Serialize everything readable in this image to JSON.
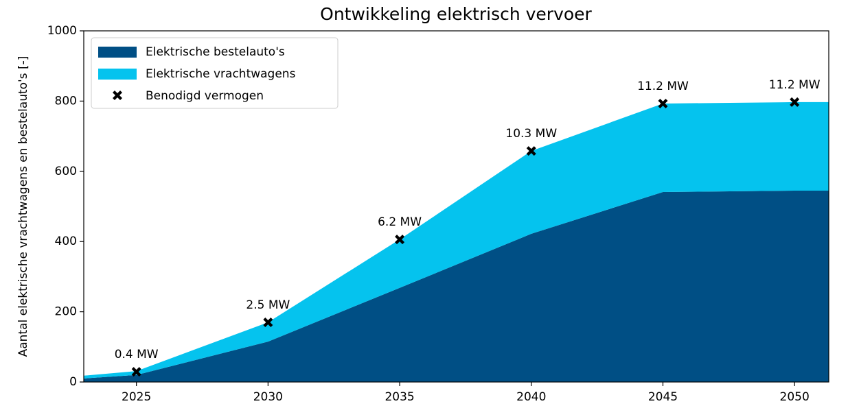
{
  "chart_data": {
    "type": "stacked-area",
    "title": "Ontwikkeling elektrisch vervoer",
    "y_label": "Aantal elektrische vrachtwagens en bestelauto's [-]",
    "x": [
      2023,
      2025,
      2030,
      2035,
      2040,
      2045,
      2050,
      2051.3
    ],
    "series": [
      {
        "name": "Elektrische bestelauto's",
        "color": "#004f85",
        "values": [
          10,
          20,
          115,
          268,
          422,
          541,
          545,
          545
        ]
      },
      {
        "name": "Elektrische vrachtwagens",
        "color": "#05c3ee",
        "values": [
          8,
          11,
          55,
          138,
          236,
          252,
          252,
          252
        ]
      }
    ],
    "markers": {
      "name": "Benodigd vermogen",
      "color": "#000000",
      "x": [
        2025,
        2030,
        2035,
        2040,
        2045,
        2050
      ],
      "values": [
        29,
        170,
        406,
        658,
        793,
        797
      ]
    },
    "annotations": [
      {
        "text": "0.4 MW",
        "x": 2025,
        "y": 29
      },
      {
        "text": "2.5 MW",
        "x": 2030,
        "y": 170
      },
      {
        "text": "6.2 MW",
        "x": 2035,
        "y": 406
      },
      {
        "text": "10.3 MW",
        "x": 2040,
        "y": 658
      },
      {
        "text": "11.2 MW",
        "x": 2045,
        "y": 793
      },
      {
        "text": "11.2 MW",
        "x": 2050,
        "y": 797
      }
    ],
    "xlim": [
      2023,
      2051.3
    ],
    "ylim": [
      0,
      1000
    ],
    "xticks": [
      2025,
      2030,
      2035,
      2040,
      2045,
      2050
    ],
    "yticks": [
      0,
      200,
      400,
      600,
      800,
      1000
    ],
    "legend": "upper left",
    "grid": false
  }
}
